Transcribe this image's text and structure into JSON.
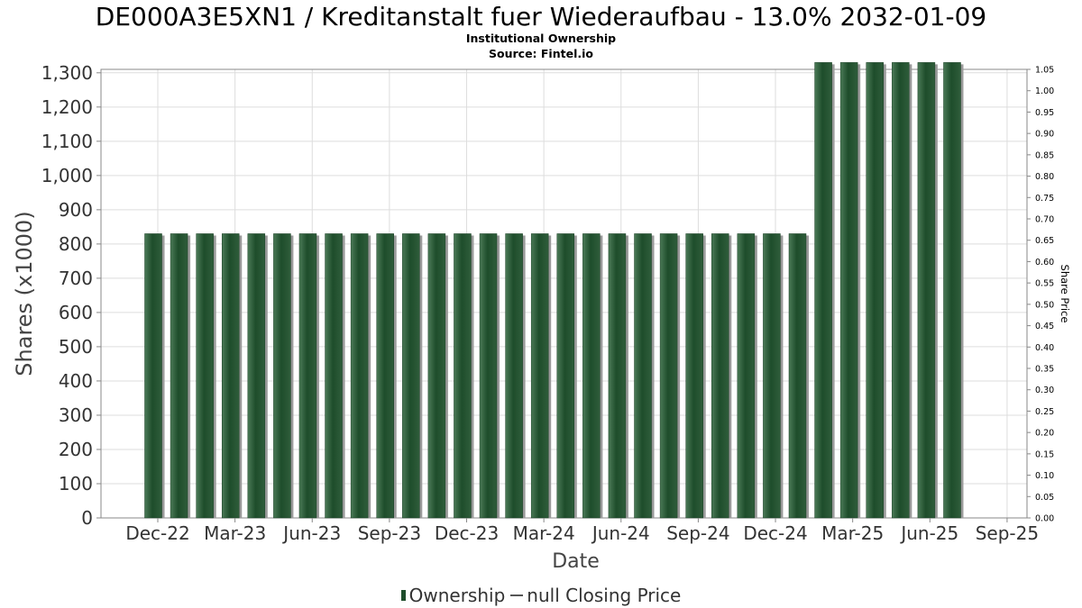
{
  "title": "DE000A3E5XN1 / Kreditanstalt fuer Wiederaufbau - 13.0% 2032-01-09",
  "subtitle1": "Institutional Ownership",
  "subtitle2": "Source: Fintel.io",
  "legend": {
    "series1": "Ownership",
    "series2": "null Closing Price"
  },
  "colors": {
    "bar": "#1e4d2b",
    "bar_shadow": "#9a9a9a",
    "grid": "#dddddd",
    "background": "#ffffff"
  },
  "chart_data": {
    "type": "bar",
    "xlabel": "Date",
    "ylabel": "Shares (x1000)",
    "y2label": "Share Price",
    "ylim": [
      0,
      1310
    ],
    "y2lim": [
      0,
      1.05
    ],
    "yticks": [
      0,
      100,
      200,
      300,
      400,
      500,
      600,
      700,
      800,
      900,
      1000,
      1100,
      1200,
      1300
    ],
    "yticklabels": [
      "0",
      "100",
      "200",
      "300",
      "400",
      "500",
      "600",
      "700",
      "800",
      "900",
      "1,000",
      "1,100",
      "1,200",
      "1,300"
    ],
    "y2ticklabels": [
      "0.00",
      "0.05",
      "0.10",
      "0.15",
      "0.20",
      "0.25",
      "0.30",
      "0.35",
      "0.40",
      "0.45",
      "0.50",
      "0.55",
      "0.60",
      "0.65",
      "0.70",
      "0.75",
      "0.80",
      "0.85",
      "0.90",
      "0.95",
      "1.00",
      "1.05"
    ],
    "xticklabels": [
      "Dec-22",
      "Mar-23",
      "Jun-23",
      "Sep-23",
      "Dec-23",
      "Mar-24",
      "Jun-24",
      "Sep-24",
      "Dec-24",
      "Mar-25",
      "Jun-25",
      "Sep-25"
    ],
    "grid": true,
    "legend_position": "bottom",
    "series": [
      {
        "name": "Ownership",
        "values": [
          830,
          830,
          830,
          830,
          830,
          830,
          830,
          830,
          830,
          830,
          830,
          830,
          830,
          830,
          830,
          830,
          830,
          830,
          830,
          830,
          830,
          830,
          830,
          830,
          830,
          830,
          1330,
          1330,
          1330,
          1330,
          1330,
          1330
        ]
      }
    ]
  }
}
